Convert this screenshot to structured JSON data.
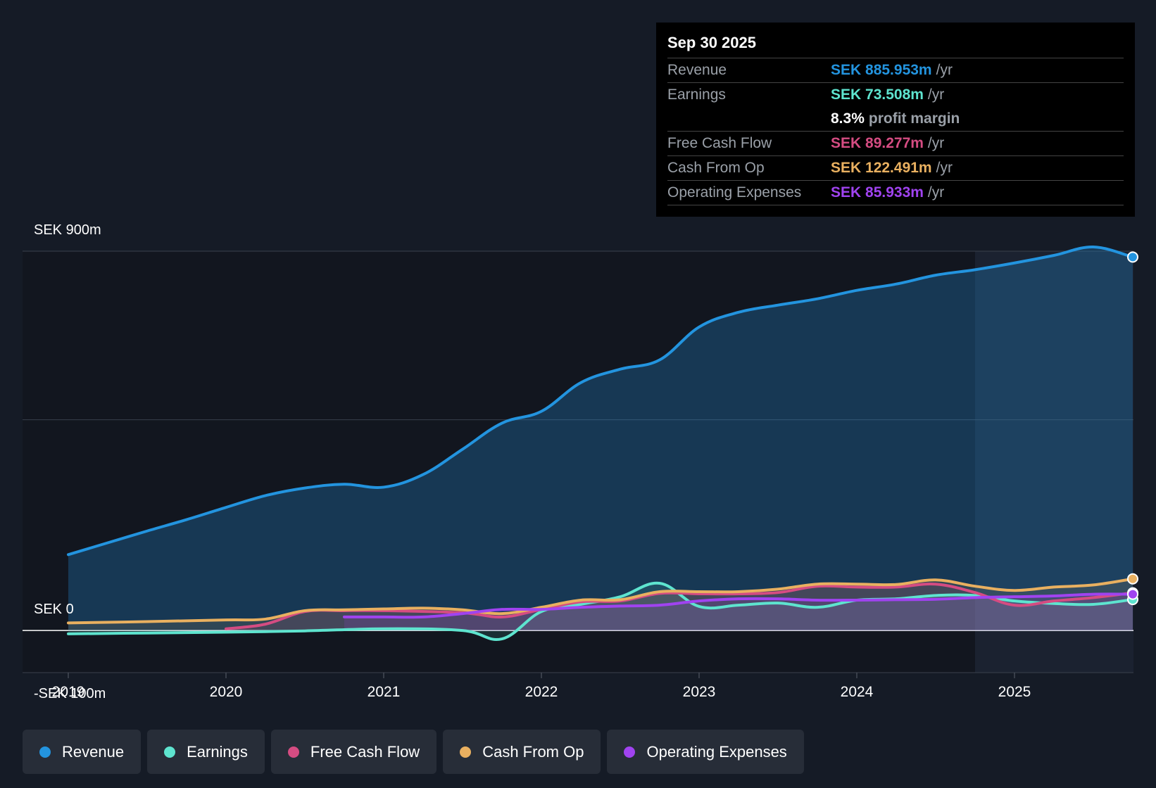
{
  "colors": {
    "revenue": "#2394df",
    "earnings": "#5ee4cf",
    "fcf": "#d54c82",
    "cfo": "#e9b060",
    "opex": "#a043f0"
  },
  "tooltip": {
    "date": "Sep 30 2025",
    "rows": [
      {
        "label": "Revenue",
        "value": "SEK 885.953m",
        "unit": "/yr"
      },
      {
        "label": "Earnings",
        "value": "SEK 73.508m",
        "unit": "/yr"
      },
      {
        "label": "",
        "value": "8.3%",
        "unit": "profit margin"
      },
      {
        "label": "Free Cash Flow",
        "value": "SEK 89.277m",
        "unit": "/yr"
      },
      {
        "label": "Cash From Op",
        "value": "SEK 122.491m",
        "unit": "/yr"
      },
      {
        "label": "Operating Expenses",
        "value": "SEK 85.933m",
        "unit": "/yr"
      }
    ]
  },
  "legend": {
    "items": [
      {
        "label": "Revenue"
      },
      {
        "label": "Earnings"
      },
      {
        "label": "Free Cash Flow"
      },
      {
        "label": "Cash From Op"
      },
      {
        "label": "Operating Expenses"
      }
    ]
  },
  "chart_data": {
    "type": "area",
    "title": "",
    "ylabel": "",
    "xlabel": "",
    "ylim": [
      -100,
      900
    ],
    "y_tick_labels": [
      "SEK 900m",
      "SEK 0",
      "-SEK 100m"
    ],
    "x_tick_labels": [
      "2019",
      "2020",
      "2021",
      "2022",
      "2023",
      "2024",
      "2025"
    ],
    "xlim": [
      2019.0,
      2025.75
    ],
    "forecast_start": 2024.75,
    "series": [
      {
        "name": "Revenue",
        "key": "revenue",
        "points": [
          [
            2019.0,
            180
          ],
          [
            2019.25,
            208
          ],
          [
            2019.5,
            236
          ],
          [
            2019.75,
            263
          ],
          [
            2020.0,
            292
          ],
          [
            2020.25,
            320
          ],
          [
            2020.5,
            338
          ],
          [
            2020.75,
            347
          ],
          [
            2021.0,
            340
          ],
          [
            2021.25,
            370
          ],
          [
            2021.5,
            430
          ],
          [
            2021.75,
            492
          ],
          [
            2022.0,
            520
          ],
          [
            2022.25,
            588
          ],
          [
            2022.5,
            620
          ],
          [
            2022.75,
            642
          ],
          [
            2023.0,
            720
          ],
          [
            2023.25,
            755
          ],
          [
            2023.5,
            772
          ],
          [
            2023.75,
            787
          ],
          [
            2024.0,
            807
          ],
          [
            2024.25,
            822
          ],
          [
            2024.5,
            843
          ],
          [
            2024.75,
            856
          ],
          [
            2025.0,
            872
          ],
          [
            2025.25,
            890
          ],
          [
            2025.5,
            910
          ],
          [
            2025.75,
            886
          ]
        ]
      },
      {
        "name": "Earnings",
        "key": "earnings",
        "points": [
          [
            2019.0,
            -8
          ],
          [
            2019.5,
            -6
          ],
          [
            2020.0,
            -4
          ],
          [
            2020.5,
            -1
          ],
          [
            2021.0,
            4
          ],
          [
            2021.5,
            0
          ],
          [
            2021.75,
            -20
          ],
          [
            2022.0,
            45
          ],
          [
            2022.25,
            62
          ],
          [
            2022.5,
            80
          ],
          [
            2022.75,
            112
          ],
          [
            2023.0,
            57
          ],
          [
            2023.25,
            60
          ],
          [
            2023.5,
            65
          ],
          [
            2023.75,
            55
          ],
          [
            2024.0,
            72
          ],
          [
            2024.25,
            75
          ],
          [
            2024.5,
            83
          ],
          [
            2024.75,
            83
          ],
          [
            2025.0,
            70
          ],
          [
            2025.25,
            64
          ],
          [
            2025.5,
            62
          ],
          [
            2025.75,
            73.5
          ]
        ]
      },
      {
        "name": "Free Cash Flow",
        "key": "fcf",
        "points": [
          [
            2020.0,
            4
          ],
          [
            2020.25,
            15
          ],
          [
            2020.5,
            45
          ],
          [
            2020.75,
            47
          ],
          [
            2021.0,
            47
          ],
          [
            2021.5,
            42
          ],
          [
            2021.75,
            32
          ],
          [
            2022.0,
            50
          ],
          [
            2022.25,
            68
          ],
          [
            2022.5,
            70
          ],
          [
            2022.75,
            88
          ],
          [
            2023.0,
            87
          ],
          [
            2023.25,
            87
          ],
          [
            2023.5,
            90
          ],
          [
            2023.75,
            105
          ],
          [
            2024.0,
            103
          ],
          [
            2024.25,
            103
          ],
          [
            2024.5,
            110
          ],
          [
            2024.75,
            90
          ],
          [
            2025.0,
            60
          ],
          [
            2025.25,
            70
          ],
          [
            2025.5,
            78
          ],
          [
            2025.75,
            89.3
          ]
        ]
      },
      {
        "name": "Cash From Op",
        "key": "cfo",
        "points": [
          [
            2019.0,
            18
          ],
          [
            2019.5,
            21
          ],
          [
            2020.0,
            25
          ],
          [
            2020.25,
            27
          ],
          [
            2020.5,
            47
          ],
          [
            2020.75,
            49
          ],
          [
            2021.0,
            51
          ],
          [
            2021.25,
            53
          ],
          [
            2021.5,
            49
          ],
          [
            2021.75,
            40
          ],
          [
            2022.0,
            55
          ],
          [
            2022.25,
            72
          ],
          [
            2022.5,
            73
          ],
          [
            2022.75,
            92
          ],
          [
            2023.0,
            92
          ],
          [
            2023.25,
            92
          ],
          [
            2023.5,
            98
          ],
          [
            2023.75,
            110
          ],
          [
            2024.0,
            110
          ],
          [
            2024.25,
            109
          ],
          [
            2024.5,
            120
          ],
          [
            2024.75,
            105
          ],
          [
            2025.0,
            95
          ],
          [
            2025.25,
            103
          ],
          [
            2025.5,
            108
          ],
          [
            2025.75,
            122.5
          ]
        ]
      },
      {
        "name": "Operating Expenses",
        "key": "opex",
        "points": [
          [
            2020.75,
            32
          ],
          [
            2021.0,
            32
          ],
          [
            2021.25,
            32
          ],
          [
            2021.5,
            40
          ],
          [
            2021.75,
            50
          ],
          [
            2022.0,
            50
          ],
          [
            2022.25,
            55
          ],
          [
            2022.5,
            58
          ],
          [
            2022.75,
            60
          ],
          [
            2023.0,
            70
          ],
          [
            2023.25,
            75
          ],
          [
            2023.5,
            75
          ],
          [
            2023.75,
            72
          ],
          [
            2024.0,
            72
          ],
          [
            2024.25,
            73
          ],
          [
            2024.5,
            74
          ],
          [
            2024.75,
            78
          ],
          [
            2025.0,
            80
          ],
          [
            2025.25,
            82
          ],
          [
            2025.5,
            86
          ],
          [
            2025.75,
            86
          ]
        ]
      }
    ]
  }
}
